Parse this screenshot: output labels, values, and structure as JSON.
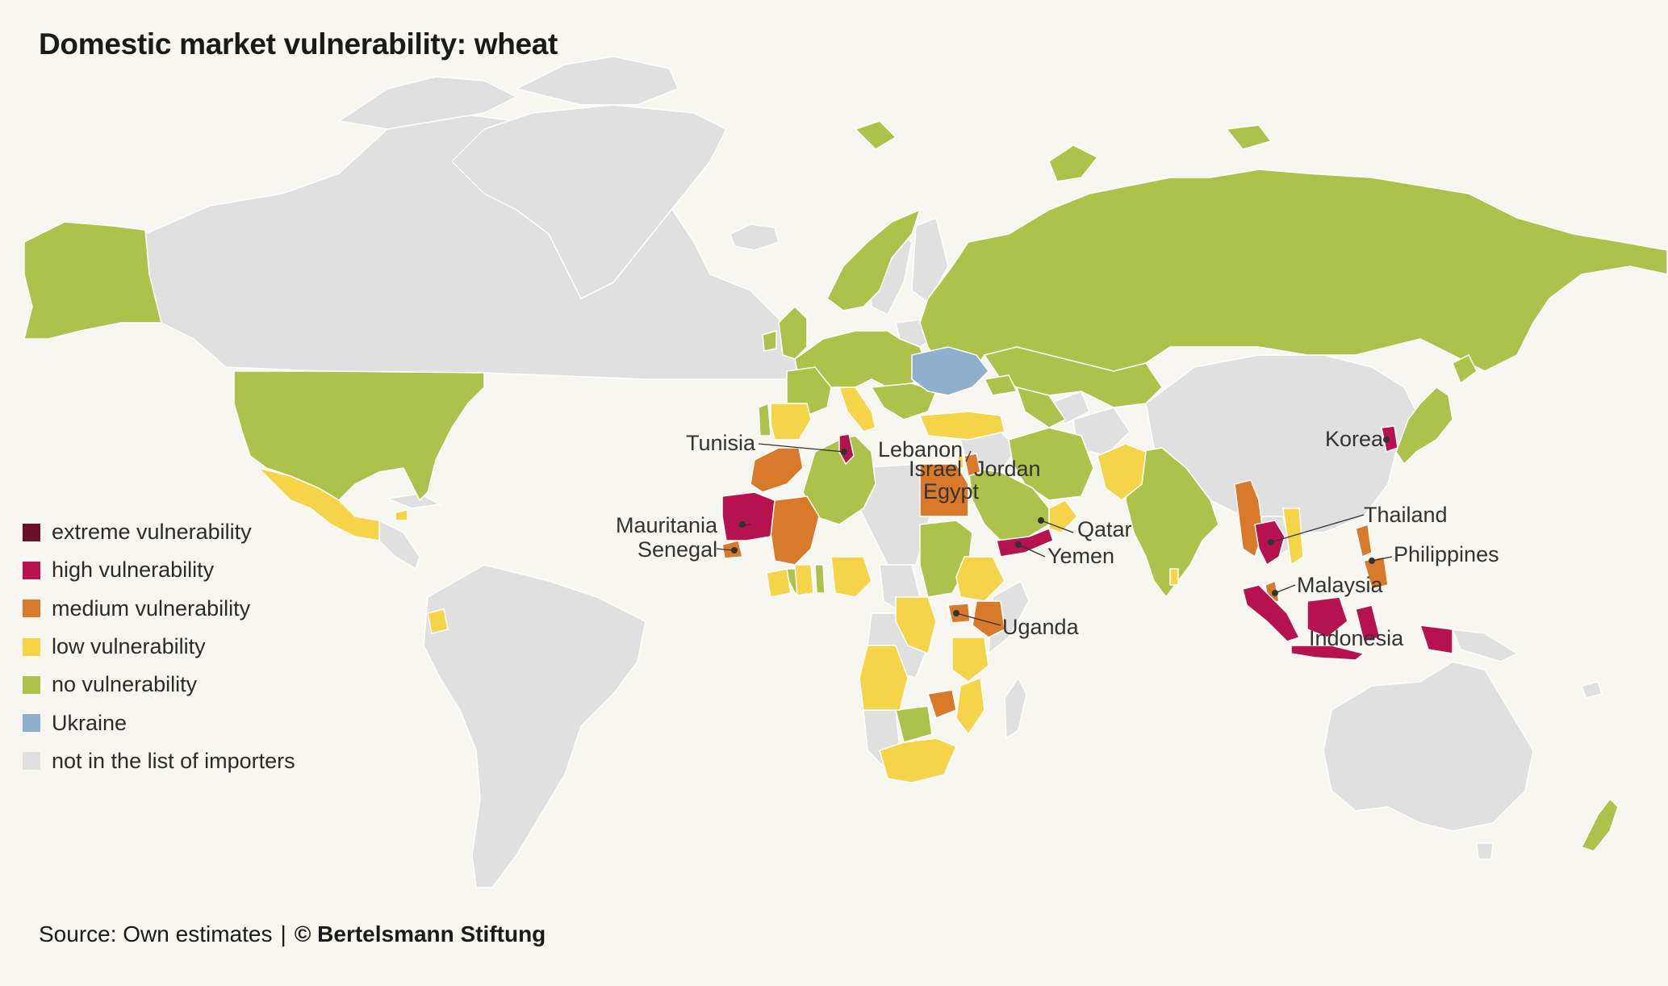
{
  "title": "Domestic market vulnerability: wheat",
  "legend": [
    {
      "label": "extreme vulnerability",
      "color": "#6b0f2a"
    },
    {
      "label": "high vulnerability",
      "color": "#b5124f"
    },
    {
      "label": "medium vulnerability",
      "color": "#d97a2a"
    },
    {
      "label": "low vulnerability",
      "color": "#f5d44a"
    },
    {
      "label": "no vulnerability",
      "color": "#adc24a"
    },
    {
      "label": "Ukraine",
      "color": "#8fb0cc"
    },
    {
      "label": "not in the list of importers",
      "color": "#e0e0e0"
    }
  ],
  "country_labels": {
    "tunisia": "Tunisia",
    "lebanon": "Lebanon",
    "israel": "Israel",
    "jordan": "Jordan",
    "egypt": "Egypt",
    "korea": "Korea",
    "mauritania": "Mauritania",
    "senegal": "Senegal",
    "qatar": "Qatar",
    "yemen": "Yemen",
    "thailand": "Thailand",
    "philippines": "Philippines",
    "malaysia": "Malaysia",
    "uganda": "Uganda",
    "indonesia": "Indonesia"
  },
  "footer": {
    "source": "Source: Own estimates",
    "separator": "|",
    "credit": "© Bertelsmann Stiftung"
  }
}
